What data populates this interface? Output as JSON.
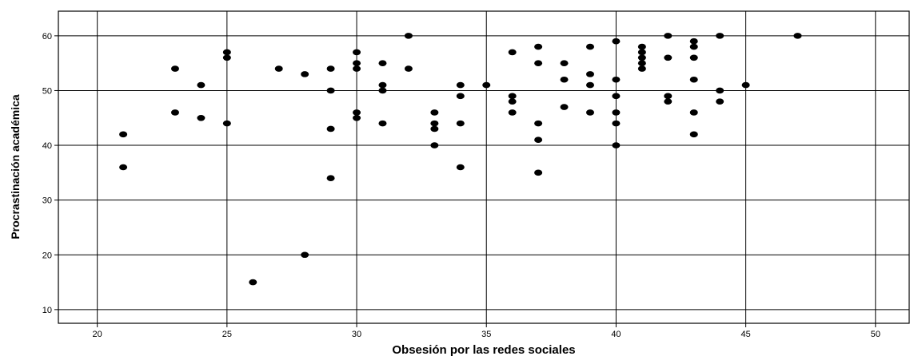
{
  "chart_data": {
    "type": "scatter",
    "xlabel": "Obsesión por las redes sociales",
    "ylabel": "Procrastinación académica",
    "xlim": [
      18.5,
      51.3
    ],
    "ylim": [
      7.5,
      64.5
    ],
    "x_ticks": [
      20,
      25,
      30,
      35,
      40,
      45,
      50
    ],
    "y_ticks": [
      10,
      20,
      30,
      40,
      50,
      60
    ],
    "x_tick_labels": [
      "20",
      "25",
      "30",
      "35",
      "40",
      "45",
      "50"
    ],
    "y_tick_labels": [
      "10",
      "20",
      "30",
      "40",
      "50",
      "60"
    ],
    "grid": true,
    "legend": "none",
    "point_color": "#000000",
    "points": [
      [
        21,
        42
      ],
      [
        21,
        36
      ],
      [
        23,
        54
      ],
      [
        23,
        46
      ],
      [
        24,
        51
      ],
      [
        24,
        45
      ],
      [
        25,
        57
      ],
      [
        25,
        56
      ],
      [
        25,
        44
      ],
      [
        26,
        15
      ],
      [
        27,
        54
      ],
      [
        28,
        53
      ],
      [
        28,
        20
      ],
      [
        29,
        54
      ],
      [
        29,
        50
      ],
      [
        29,
        43
      ],
      [
        29,
        34
      ],
      [
        30,
        57
      ],
      [
        30,
        55
      ],
      [
        30,
        54
      ],
      [
        30,
        46
      ],
      [
        30,
        45
      ],
      [
        31,
        55
      ],
      [
        31,
        51
      ],
      [
        31,
        50
      ],
      [
        31,
        44
      ],
      [
        32,
        60
      ],
      [
        32,
        54
      ],
      [
        33,
        46
      ],
      [
        33,
        44
      ],
      [
        33,
        43
      ],
      [
        33,
        40
      ],
      [
        34,
        51
      ],
      [
        34,
        49
      ],
      [
        34,
        44
      ],
      [
        34,
        36
      ],
      [
        35,
        51
      ],
      [
        36,
        57
      ],
      [
        36,
        49
      ],
      [
        36,
        48
      ],
      [
        36,
        46
      ],
      [
        37,
        58
      ],
      [
        37,
        55
      ],
      [
        37,
        44
      ],
      [
        37,
        41
      ],
      [
        37,
        35
      ],
      [
        38,
        55
      ],
      [
        38,
        52
      ],
      [
        38,
        47
      ],
      [
        39,
        58
      ],
      [
        39,
        53
      ],
      [
        39,
        51
      ],
      [
        39,
        46
      ],
      [
        40,
        59
      ],
      [
        40,
        52
      ],
      [
        40,
        49
      ],
      [
        40,
        46
      ],
      [
        40,
        44
      ],
      [
        40,
        40
      ],
      [
        41,
        58
      ],
      [
        41,
        57
      ],
      [
        41,
        56
      ],
      [
        41,
        55
      ],
      [
        41,
        54
      ],
      [
        42,
        60
      ],
      [
        42,
        56
      ],
      [
        42,
        49
      ],
      [
        42,
        48
      ],
      [
        43,
        59
      ],
      [
        43,
        58
      ],
      [
        43,
        56
      ],
      [
        43,
        52
      ],
      [
        43,
        46
      ],
      [
        43,
        42
      ],
      [
        44,
        60
      ],
      [
        44,
        50
      ],
      [
        44,
        48
      ],
      [
        45,
        51
      ],
      [
        47,
        60
      ]
    ]
  }
}
